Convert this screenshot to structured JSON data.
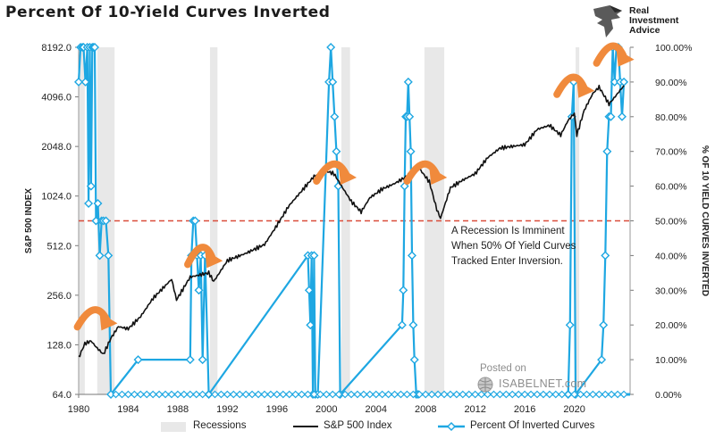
{
  "title": "Percent Of 10-Yield Curves Inverted",
  "brand": {
    "line1": "Real",
    "line2": "Investment",
    "line3": "Advice"
  },
  "watermark": {
    "posted": "Posted on",
    "site": "ISABELNET.com"
  },
  "annotation": {
    "line1": "A Recession Is Imminent",
    "line2": "When 50% Of Yield Curves",
    "line3": "Tracked Enter Inversion."
  },
  "legend": {
    "recessions": "Recessions",
    "sp500": "S&P 500 Index",
    "inverted": "Percent Of Inverted Curves"
  },
  "colors": {
    "sp500": "#111111",
    "inverted": "#1ea7e2",
    "recession": "#e8e8e8",
    "threshold": "#d94c3a",
    "arrow": "#f08a3c"
  },
  "chart_data": {
    "type": "line",
    "title": "Percent Of 10-Yield Curves Inverted",
    "xlabel": "",
    "ylabel": "S&P 500 INDEX",
    "y2label": "% OF 10 YIELD CURVES INVERTED",
    "x_ticks": [
      "1980",
      "1984",
      "1988",
      "1992",
      "1996",
      "2000",
      "2004",
      "2008",
      "2012",
      "2016",
      "2020"
    ],
    "y_ticks": [
      "64.0",
      "128.0",
      "256.0",
      "512.0",
      "1024.0",
      "2048.0",
      "4096.0",
      "8192.0"
    ],
    "y2_ticks": [
      "0.00%",
      "10.00%",
      "20.00%",
      "30.00%",
      "40.00%",
      "50.00%",
      "60.00%",
      "70.00%",
      "80.00%",
      "90.00%",
      "100.00%"
    ],
    "xlim": [
      1980,
      2024.5
    ],
    "ylim": [
      64,
      8192
    ],
    "y_scale": "log2",
    "y2lim": [
      0,
      100
    ],
    "threshold_pct": 50,
    "recessions": [
      [
        1980.0,
        1980.5
      ],
      [
        1981.5,
        1982.9
      ],
      [
        1990.6,
        1991.2
      ],
      [
        2001.2,
        2001.9
      ],
      [
        2007.9,
        2009.5
      ],
      [
        2020.1,
        2020.4
      ]
    ],
    "series": [
      {
        "name": "S&P 500 Index",
        "x": [
          1980.0,
          1980.5,
          1981.0,
          1981.5,
          1982.0,
          1982.6,
          1983.2,
          1984.0,
          1985.0,
          1986.0,
          1987.5,
          1987.9,
          1989.0,
          1990.5,
          1990.9,
          1992.0,
          1993.5,
          1995.0,
          1996.0,
          1997.0,
          1998.0,
          1999.0,
          2000.0,
          2000.6,
          2001.3,
          2002.0,
          2002.8,
          2003.5,
          2004.5,
          2005.5,
          2006.5,
          2007.5,
          2008.3,
          2008.9,
          2009.2,
          2010.0,
          2011.0,
          2012.0,
          2013.0,
          2014.0,
          2015.0,
          2016.0,
          2017.0,
          2018.0,
          2018.9,
          2019.5,
          2020.0,
          2020.2,
          2020.8,
          2021.5,
          2022.0,
          2022.8,
          2023.5,
          2024.0
        ],
        "values": [
          107,
          130,
          135,
          122,
          112,
          140,
          165,
          160,
          190,
          245,
          320,
          240,
          330,
          350,
          310,
          415,
          460,
          520,
          680,
          900,
          1100,
          1350,
          1450,
          1400,
          1150,
          950,
          820,
          1000,
          1130,
          1220,
          1350,
          1500,
          1250,
          850,
          750,
          1150,
          1280,
          1400,
          1750,
          2000,
          2050,
          2100,
          2600,
          2750,
          2400,
          2950,
          3250,
          2400,
          3400,
          4300,
          4700,
          3700,
          4300,
          4800
        ]
      },
      {
        "name": "Percent Of Inverted Curves",
        "x": [
          1980.0,
          1980.15,
          1980.3,
          1980.4,
          1980.55,
          1980.7,
          1980.8,
          1980.9,
          1981.0,
          1981.1,
          1981.2,
          1981.3,
          1981.4,
          1981.55,
          1981.7,
          1981.85,
          1982.0,
          1982.2,
          1982.4,
          1982.6,
          1984.8,
          1989.0,
          1989.1,
          1989.25,
          1989.4,
          1989.55,
          1989.7,
          1989.85,
          1990.0,
          1990.2,
          1990.5,
          1998.5,
          1998.6,
          1998.7,
          1998.8,
          1998.9,
          1999.0,
          1999.1,
          1999.3,
          2000.2,
          2000.35,
          2000.5,
          2000.65,
          2000.8,
          2000.95,
          2001.1,
          2006.1,
          2006.2,
          2006.3,
          2006.4,
          2006.5,
          2006.6,
          2006.7,
          2006.8,
          2006.9,
          2007.0,
          2007.1,
          2007.25,
          2007.4,
          2019.5,
          2019.65,
          2019.8,
          2019.95,
          2020.1,
          2022.2,
          2022.35,
          2022.5,
          2022.65,
          2022.8,
          2022.95,
          2023.1,
          2023.25,
          2023.4,
          2023.55,
          2023.7,
          2023.85,
          2024.0
        ],
        "values": [
          90,
          100,
          100,
          100,
          90,
          100,
          55,
          100,
          60,
          100,
          100,
          100,
          50,
          55,
          40,
          50,
          50,
          50,
          40,
          0,
          10,
          10,
          40,
          50,
          50,
          40,
          30,
          40,
          10,
          40,
          0,
          40,
          30,
          20,
          40,
          0,
          40,
          0,
          0,
          90,
          100,
          90,
          80,
          70,
          60,
          0,
          20,
          30,
          60,
          80,
          80,
          90,
          80,
          70,
          40,
          20,
          10,
          0,
          0,
          0,
          20,
          80,
          90,
          0,
          10,
          20,
          40,
          70,
          80,
          80,
          100,
          90,
          100,
          100,
          90,
          80,
          90
        ]
      }
    ]
  }
}
